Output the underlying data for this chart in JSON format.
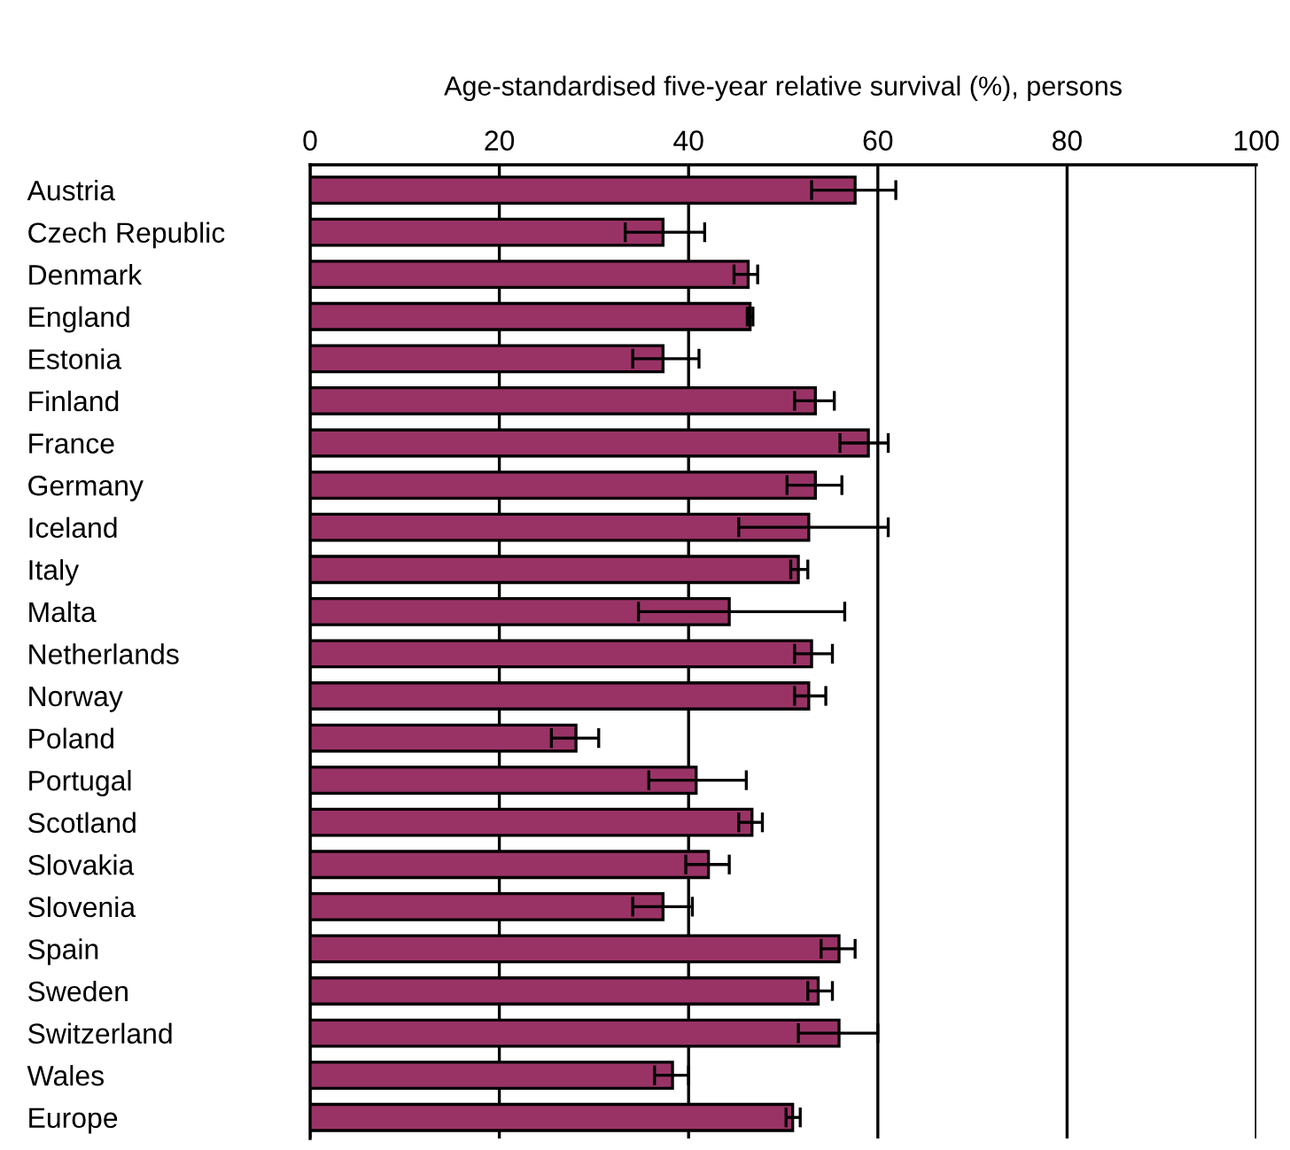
{
  "chart_data": {
    "type": "bar",
    "orientation": "horizontal",
    "xlabel": "Age-standardised five-year relative survival (%), persons",
    "categories": [
      "Austria",
      "Czech Republic",
      "Denmark",
      "England",
      "Estonia",
      "Finland",
      "France",
      "Germany",
      "Iceland",
      "Italy",
      "Malta",
      "Netherlands",
      "Norway",
      "Poland",
      "Portugal",
      "Scotland",
      "Slovakia",
      "Slovenia",
      "Spain",
      "Sweden",
      "Switzerland",
      "Wales",
      "Europe"
    ],
    "values": [
      57.6,
      37.3,
      46.3,
      46.5,
      37.3,
      53.4,
      59.0,
      53.4,
      52.7,
      51.6,
      44.3,
      53.0,
      52.7,
      28.1,
      40.8,
      46.7,
      42.1,
      37.3,
      55.9,
      53.7,
      55.9,
      38.3,
      51.0
    ],
    "errors": [
      [
        53.0,
        61.9
      ],
      [
        33.3,
        41.7
      ],
      [
        44.8,
        47.3
      ],
      [
        46.2,
        46.8
      ],
      [
        34.1,
        41.1
      ],
      [
        51.2,
        55.4
      ],
      [
        56.0,
        61.1
      ],
      [
        50.4,
        56.2
      ],
      [
        45.3,
        61.1
      ],
      [
        50.8,
        52.6
      ],
      [
        34.7,
        56.5
      ],
      [
        51.2,
        55.2
      ],
      [
        51.2,
        54.5
      ],
      [
        25.5,
        30.5
      ],
      [
        35.8,
        46.1
      ],
      [
        45.3,
        47.8
      ],
      [
        39.7,
        44.3
      ],
      [
        34.1,
        40.4
      ],
      [
        54.0,
        57.6
      ],
      [
        52.6,
        55.2
      ],
      [
        51.6,
        60.0
      ],
      [
        36.4,
        40.0
      ],
      [
        50.3,
        51.8
      ]
    ],
    "color": "#993366",
    "xlim": [
      0,
      100
    ],
    "xticks": [
      0,
      20,
      40,
      60,
      80,
      100
    ],
    "grid": "x"
  }
}
